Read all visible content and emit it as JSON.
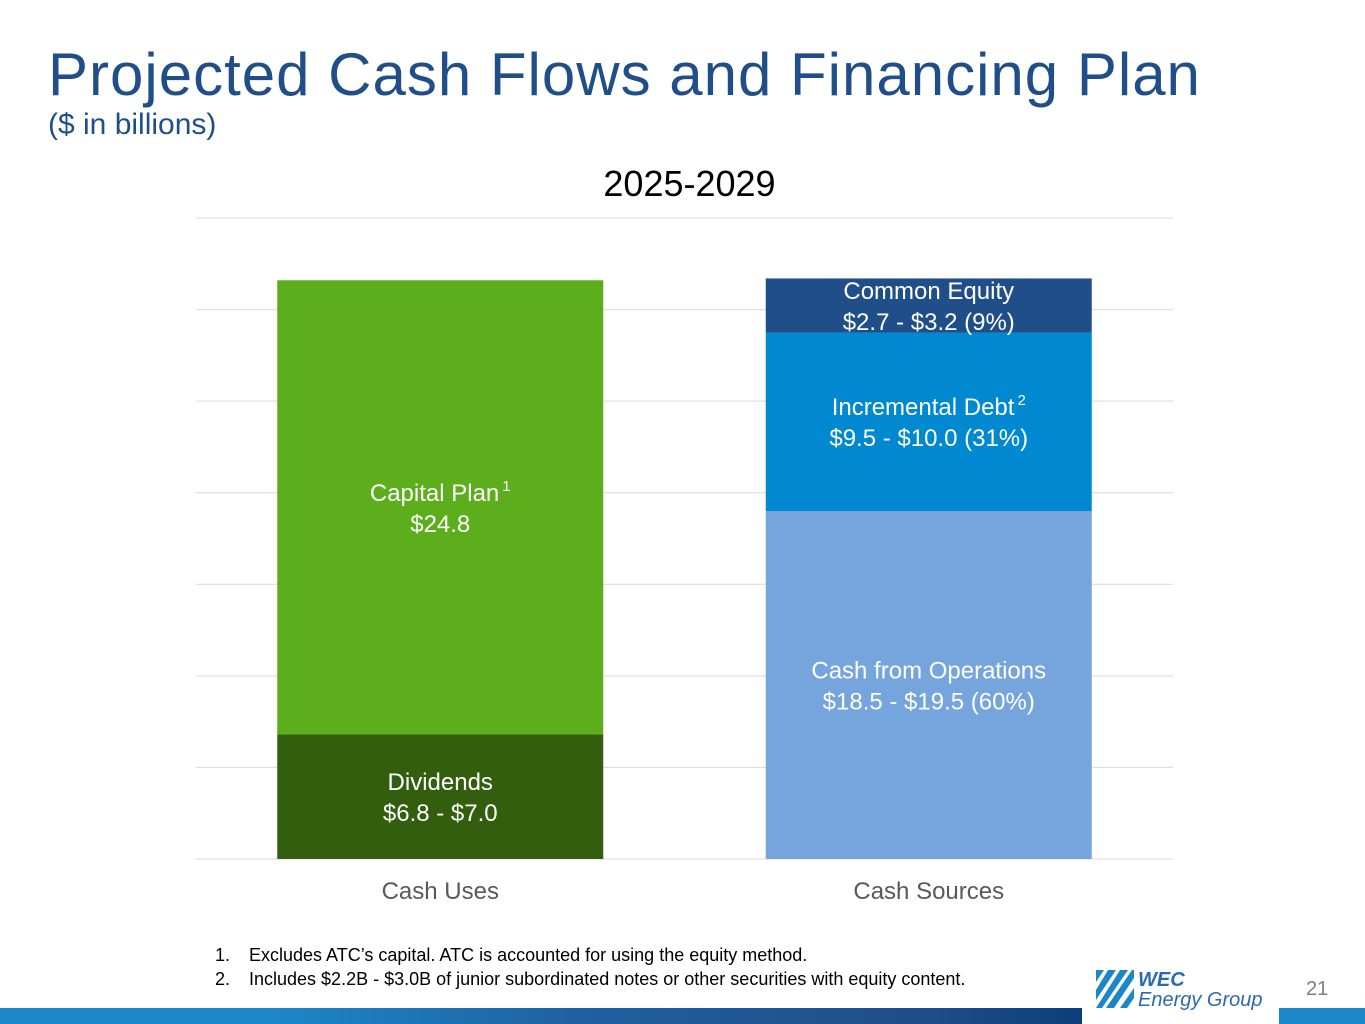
{
  "header": {
    "title": "Projected Cash Flows and Financing Plan",
    "subtitle": "($ in billions)"
  },
  "chart_data": {
    "type": "bar",
    "stacked": true,
    "title": "2025-2029",
    "categories": [
      "Cash Uses",
      "Cash Sources"
    ],
    "grid": true,
    "ylim": [
      0,
      35
    ],
    "series": [
      {
        "name": "Dividends",
        "category": "Cash Uses",
        "value": 6.8,
        "label_lines": [
          "Dividends",
          "$6.8 - $7.0"
        ],
        "color": "#335e0e"
      },
      {
        "name": "Capital Plan",
        "category": "Cash Uses",
        "value": 24.8,
        "label_lines": [
          "Capital Plan",
          "$24.8"
        ],
        "superscript": "1",
        "color": "#5cae1d"
      },
      {
        "name": "Cash from Operations",
        "category": "Cash Sources",
        "value": 19.0,
        "label_lines": [
          "Cash from Operations",
          "$18.5 - $19.5 (60%)"
        ],
        "color": "#76a4dc"
      },
      {
        "name": "Incremental Debt",
        "category": "Cash Sources",
        "value": 9.75,
        "label_lines": [
          "Incremental Debt",
          "$9.5 - $10.0 (31%)"
        ],
        "superscript": "2",
        "color": "#0088d1"
      },
      {
        "name": "Common Equity",
        "category": "Cash Sources",
        "value": 2.95,
        "label_lines": [
          "Common Equity",
          "$2.7 - $3.2 (9%)"
        ],
        "color": "#1f4e89"
      }
    ]
  },
  "footnotes": [
    {
      "num": "1.",
      "text": "Excludes ATC’s capital. ATC is accounted for using the equity method."
    },
    {
      "num": "2.",
      "text": "Includes $2.2B - $3.0B of junior subordinated notes or other securities with equity content."
    }
  ],
  "logo": {
    "line1": "WEC",
    "line2": "Energy Group"
  },
  "page_number": "21",
  "colors": {
    "title": "#1f4e89",
    "footer_bar": "#1b87c9"
  }
}
